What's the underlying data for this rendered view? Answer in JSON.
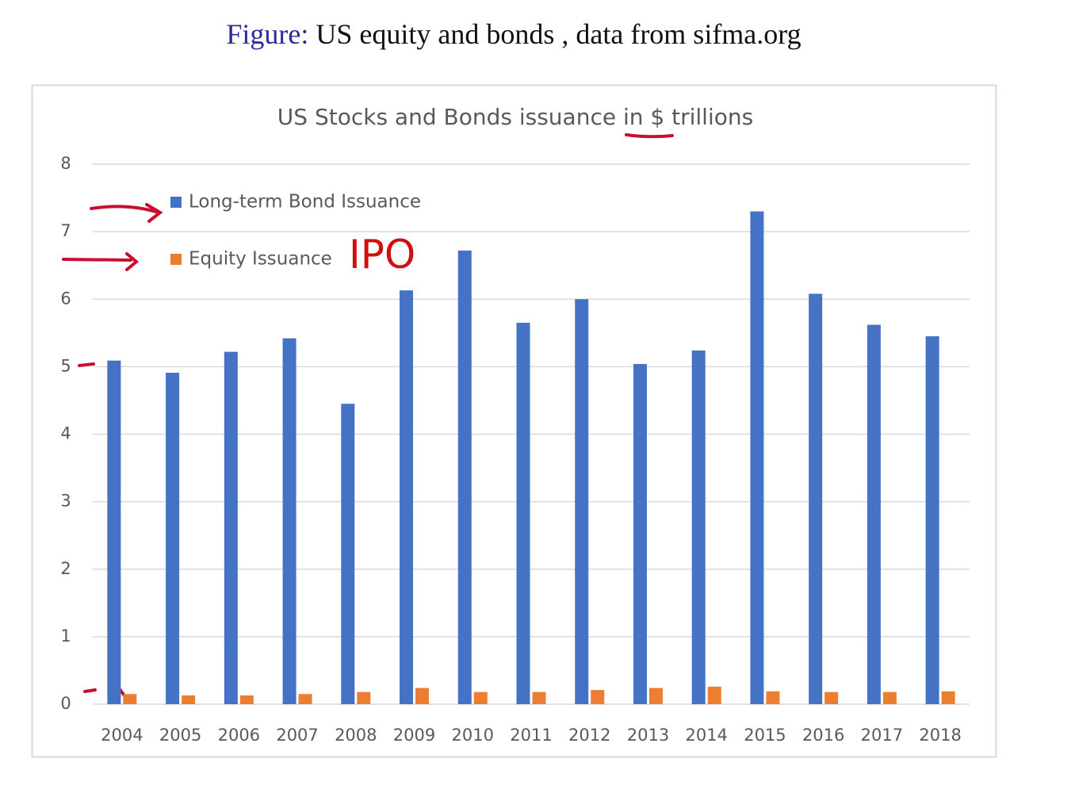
{
  "caption": {
    "label": "Figure:",
    "text": "US equity and bonds , data from sifma.org"
  },
  "chart_data": {
    "type": "bar",
    "title": "US Stocks and Bonds issuance in $ trillions",
    "annotation": "IPO",
    "categories": [
      "2004",
      "2005",
      "2006",
      "2007",
      "2008",
      "2009",
      "2010",
      "2011",
      "2012",
      "2013",
      "2014",
      "2015",
      "2016",
      "2017",
      "2018"
    ],
    "series": [
      {
        "name": "Long-term Bond Issuance",
        "color": "#4472c4",
        "values": [
          5.09,
          4.91,
          5.22,
          5.42,
          4.45,
          6.13,
          6.72,
          5.65,
          6.0,
          5.04,
          5.24,
          7.3,
          6.08,
          5.62,
          5.45
        ]
      },
      {
        "name": "Equity Issuance",
        "color": "#ed7d31",
        "values": [
          0.15,
          0.13,
          0.13,
          0.15,
          0.18,
          0.24,
          0.18,
          0.18,
          0.21,
          0.24,
          0.26,
          0.19,
          0.18,
          0.18,
          0.19
        ]
      }
    ],
    "ylim": [
      0,
      8
    ],
    "yticks": [
      0,
      1,
      2,
      3,
      4,
      5,
      6,
      7,
      8
    ],
    "grid": true,
    "legend": "top-left"
  }
}
